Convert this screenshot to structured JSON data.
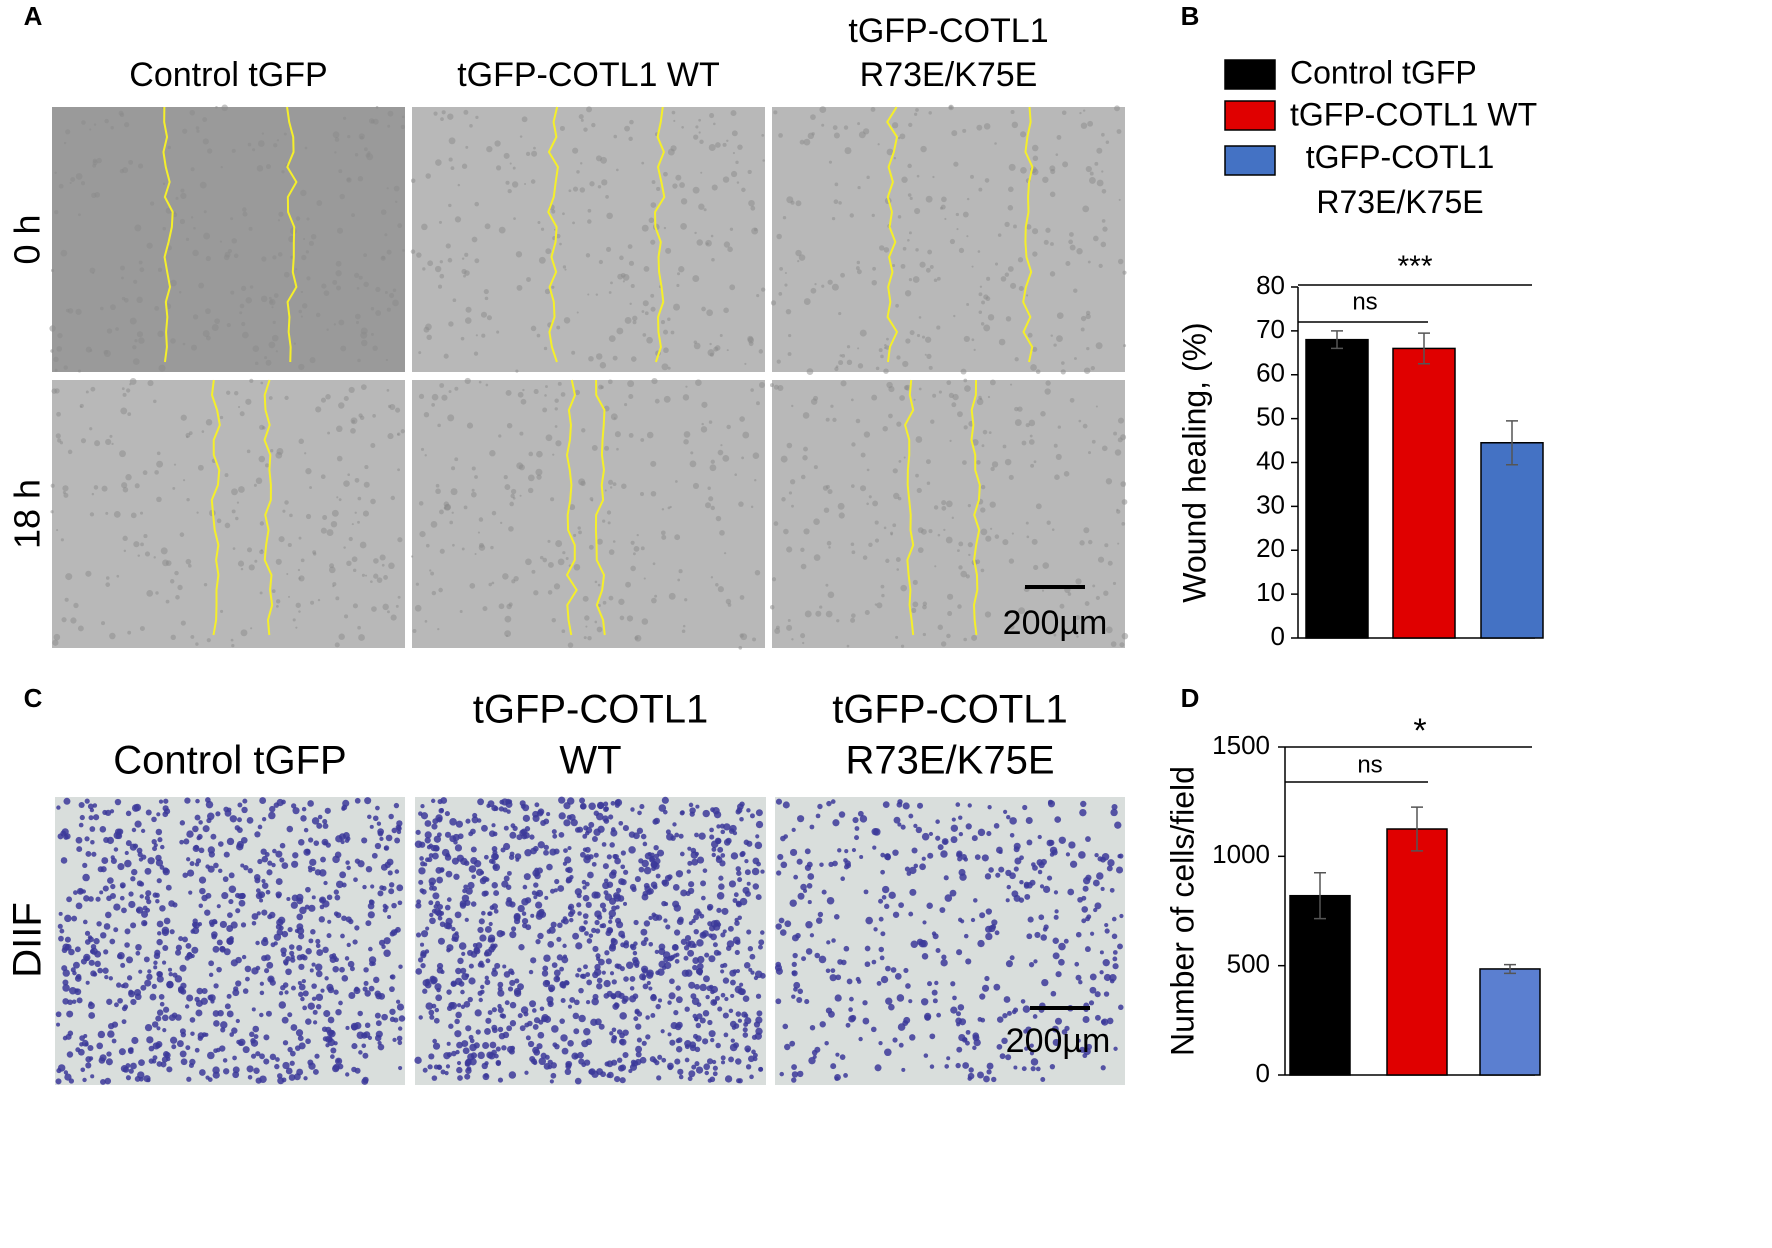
{
  "panel_labels": [
    "A",
    "B",
    "C",
    "D"
  ],
  "wound_assay": {
    "columns": [
      [
        "Control tGFP"
      ],
      [
        "tGFP-COTL1 WT"
      ],
      [
        "tGFP-COTL1",
        "R73E/K75E"
      ]
    ],
    "rows": [
      "0 h",
      "18 h"
    ],
    "scale_bar": "200µm"
  },
  "invasion_assay": {
    "columns": [
      [
        "Control tGFP"
      ],
      [
        "tGFP-COTL1",
        "WT"
      ],
      [
        "tGFP-COTL1",
        "R73E/K75E"
      ]
    ],
    "rows": [
      "DIIF"
    ],
    "scale_bar": "200µm"
  },
  "chart_data": [
    {
      "type": "bar",
      "y_label": "Wound healing, (%)",
      "categories": [
        null
      ],
      "series": [
        {
          "name": "Control tGFP",
          "color": "#000000",
          "values": [
            68
          ],
          "errors": [
            2
          ]
        },
        {
          "name": "tGFP-COTL1  WT",
          "color": "#e00000",
          "values": [
            66
          ],
          "errors": [
            3.5
          ]
        },
        {
          "name": "tGFP-COTL1\nR73E/K75E",
          "color": "#4472c4",
          "values": [
            44.5
          ],
          "errors": [
            5
          ]
        }
      ],
      "ylim": [
        0,
        80
      ],
      "yticks": [
        0,
        10,
        20,
        30,
        40,
        50,
        60,
        70,
        80
      ],
      "annotations": [
        {
          "text": "ns"
        },
        {
          "text": "***"
        }
      ]
    },
    {
      "type": "bar",
      "y_label": "Number of cells/field",
      "categories": [
        null,
        null,
        null
      ],
      "values": [
        820,
        1125,
        485
      ],
      "errors": [
        105,
        100,
        20
      ],
      "colors": [
        "#000000",
        "#e00000",
        "#5b7fd0"
      ],
      "ylim": [
        0,
        1500
      ],
      "yticks": [
        0,
        500,
        1000,
        1500
      ],
      "annotations": [
        {
          "text": "ns"
        },
        {
          "text": "*"
        }
      ]
    }
  ]
}
